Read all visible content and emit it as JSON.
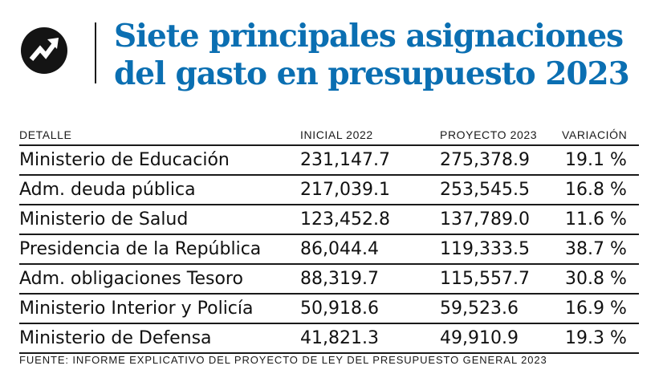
{
  "header": {
    "logo_icon": "trend-arrow-icon",
    "title": "Siete principales asignaciones del gasto en presupuesto 2023",
    "title_color": "#0b6fb2"
  },
  "chart_data": {
    "type": "table",
    "columns": [
      "DETALLE",
      "INICIAL 2022",
      "PROYECTO 2023",
      "VARIACIÓN"
    ],
    "rows": [
      [
        "Ministerio de Educación",
        "231,147.7",
        "275,378.9",
        "19.1 %"
      ],
      [
        "Adm. deuda pública",
        "217,039.1",
        "253,545.5",
        "16.8 %"
      ],
      [
        "Ministerio de Salud",
        "123,452.8",
        "137,789.0",
        "11.6 %"
      ],
      [
        "Presidencia de la República",
        "86,044.4",
        "119,333.5",
        "38.7 %"
      ],
      [
        "Adm. obligaciones Tesoro",
        "88,319.7",
        "115,557.7",
        "30.8 %"
      ],
      [
        "Ministerio Interior y Policía",
        "50,918.6",
        "59,523.6",
        "16.9 %"
      ],
      [
        "Ministerio de Defensa",
        "41,821.3",
        "49,910.9",
        "19.3 %"
      ]
    ]
  },
  "source": "FUENTE: INFORME EXPLICATIVO DEL PROYECTO DE LEY DEL PRESUPUESTO GENERAL 2023"
}
